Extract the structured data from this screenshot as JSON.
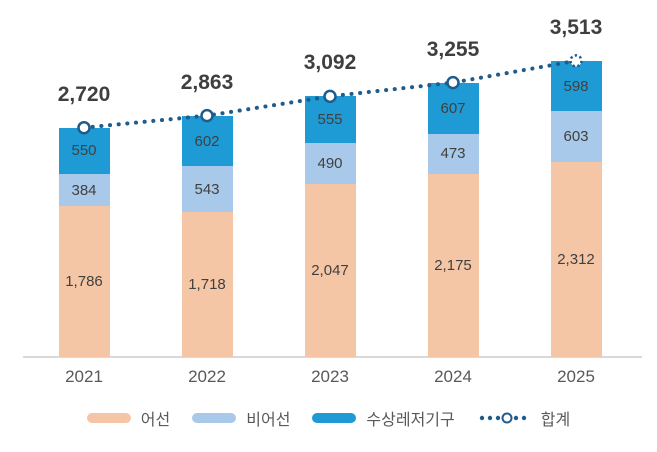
{
  "chart_data": {
    "type": "bar",
    "subtype": "stacked-bar-with-total-line",
    "categories": [
      "2021",
      "2022",
      "2023",
      "2024",
      "2025"
    ],
    "series": [
      {
        "name": "어선",
        "color": "#f4c6a6",
        "values": [
          1786,
          1718,
          2047,
          2175,
          2312
        ]
      },
      {
        "name": "비어선",
        "color": "#a9c9ea",
        "values": [
          384,
          543,
          490,
          473,
          603
        ]
      },
      {
        "name": "수상레저기구",
        "color": "#1e9bd5",
        "values": [
          550,
          602,
          555,
          607,
          598
        ]
      }
    ],
    "line_series": {
      "name": "합계",
      "color": "#1f5c8b",
      "style": "dotted",
      "marker": "open-circle",
      "last_marker": "dashed-open-circle",
      "values": [
        2720,
        2863,
        3092,
        3255,
        3513
      ]
    },
    "total_labels": [
      "2,720",
      "2,863",
      "3,092",
      "3,255",
      "3,513"
    ],
    "title": "",
    "xlabel": "",
    "ylabel": "",
    "ylim": [
      0,
      3700
    ],
    "grid": false,
    "legend_position": "bottom",
    "value_labels": true,
    "axis_line_color": "#d9d9d9",
    "segment_label_color": "#404040",
    "total_label_color": "#3f3f3f",
    "tick_label_color": "#595959"
  },
  "legend": {
    "items": [
      {
        "label": "어선"
      },
      {
        "label": "비어선"
      },
      {
        "label": "수상레저기구"
      },
      {
        "label": "합계"
      }
    ]
  }
}
